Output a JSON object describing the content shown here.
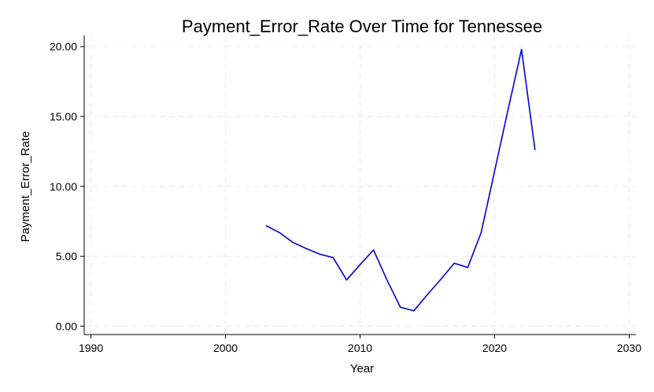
{
  "chart_data": {
    "type": "line",
    "title": "Payment_Error_Rate Over Time for Tennessee",
    "xlabel": "Year",
    "ylabel": "Payment_Error_Rate",
    "xlim": [
      1989.5,
      2030.5
    ],
    "ylim": [
      -0.6,
      20.8
    ],
    "xticks": [
      1990,
      2000,
      2010,
      2020,
      2030
    ],
    "xtick_labels": [
      "1990",
      "2000",
      "2010",
      "2020",
      "2030"
    ],
    "yticks": [
      0,
      5,
      10,
      15,
      20
    ],
    "ytick_labels": [
      "0.00",
      "5.00",
      "10.00",
      "15.00",
      "20.00"
    ],
    "grid": true,
    "series": [
      {
        "color": "#0000dd",
        "x": [
          2003,
          2004,
          2005,
          2006,
          2007,
          2008,
          2009,
          2010,
          2011,
          2012,
          2013,
          2014,
          2015,
          2016,
          2017,
          2018,
          2019,
          2020,
          2021,
          2022,
          2023
        ],
        "y": [
          7.2,
          6.7,
          6.0,
          5.55,
          5.15,
          4.9,
          3.3,
          4.4,
          5.45,
          3.3,
          1.35,
          1.1,
          2.25,
          3.35,
          4.5,
          4.2,
          6.7,
          11.1,
          15.5,
          19.8,
          12.6
        ]
      }
    ]
  }
}
